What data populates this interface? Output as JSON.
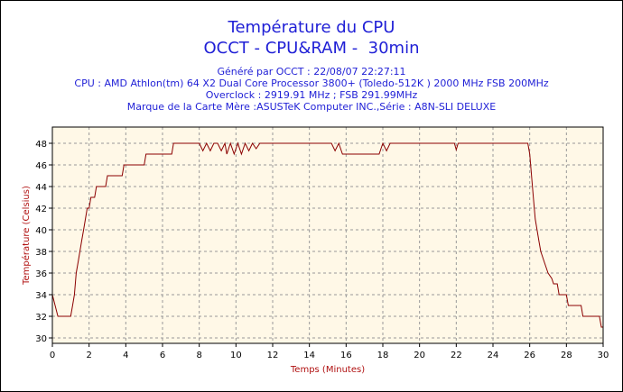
{
  "title_line1": "Température du CPU",
  "title_line2": "OCCT - CPU&RAM -  30min",
  "info_lines": [
    "Généré par OCCT : 22/08/07 22:27:11",
    "CPU : AMD Athlon(tm) 64 X2 Dual Core Processor 3800+ (Toledo-512K ) 2000 MHz FSB 200MHz",
    "Overclock : 2919.91 MHz ; FSB 291.99MHz",
    "Marque de la Carte Mère :ASUSTeK Computer INC.,Série : A8N-SLI DELUXE"
  ],
  "chart_data": {
    "type": "line",
    "title": "Température du CPU",
    "xlabel": "Temps (Minutes)",
    "ylabel": "Température (Celsius)",
    "xlim": [
      0,
      30
    ],
    "ylim": [
      29.5,
      49.5
    ],
    "x_ticks": [
      0,
      2,
      4,
      6,
      8,
      10,
      12,
      14,
      16,
      18,
      20,
      22,
      24,
      26,
      28,
      30
    ],
    "y_ticks": [
      30,
      32,
      34,
      36,
      38,
      40,
      42,
      44,
      46,
      48
    ],
    "grid": true,
    "colors": {
      "line": "#8b0000",
      "plot_bg": "#fff8e7",
      "grid": "#999999",
      "title": "#1f1fd6",
      "axis_label": "#b01010"
    },
    "series": [
      {
        "values": [
          [
            0,
            34
          ],
          [
            0.3,
            32
          ],
          [
            0.5,
            32
          ],
          [
            1.0,
            32
          ],
          [
            1.1,
            33
          ],
          [
            1.2,
            34
          ],
          [
            1.3,
            36
          ],
          [
            1.4,
            37
          ],
          [
            1.5,
            38
          ],
          [
            1.6,
            39
          ],
          [
            1.7,
            40
          ],
          [
            1.8,
            41
          ],
          [
            1.9,
            42
          ],
          [
            2.0,
            42
          ],
          [
            2.1,
            43
          ],
          [
            2.2,
            43
          ],
          [
            2.3,
            43
          ],
          [
            2.4,
            44
          ],
          [
            2.8,
            44
          ],
          [
            2.9,
            44
          ],
          [
            3.0,
            45
          ],
          [
            3.6,
            45
          ],
          [
            3.8,
            45
          ],
          [
            3.9,
            46
          ],
          [
            5.0,
            46
          ],
          [
            5.1,
            47
          ],
          [
            6.5,
            47
          ],
          [
            6.6,
            48
          ],
          [
            8.0,
            48
          ],
          [
            8.2,
            47.3
          ],
          [
            8.4,
            48
          ],
          [
            8.6,
            47.3
          ],
          [
            8.8,
            48
          ],
          [
            9.0,
            48
          ],
          [
            9.2,
            47.3
          ],
          [
            9.4,
            48
          ],
          [
            9.5,
            47
          ],
          [
            9.7,
            48
          ],
          [
            9.9,
            47
          ],
          [
            10.1,
            48
          ],
          [
            10.3,
            47
          ],
          [
            10.5,
            48
          ],
          [
            10.7,
            47.3
          ],
          [
            10.9,
            48
          ],
          [
            11.1,
            47.5
          ],
          [
            11.3,
            48
          ],
          [
            15.2,
            48
          ],
          [
            15.4,
            47.3
          ],
          [
            15.6,
            48
          ],
          [
            15.8,
            47
          ],
          [
            16.2,
            47
          ],
          [
            17.8,
            47
          ],
          [
            18.0,
            48
          ],
          [
            18.2,
            47.3
          ],
          [
            18.4,
            48
          ],
          [
            21.9,
            48
          ],
          [
            22.0,
            47.4
          ],
          [
            22.1,
            48
          ],
          [
            25.9,
            48
          ],
          [
            26.0,
            47
          ],
          [
            26.1,
            45
          ],
          [
            26.2,
            43
          ],
          [
            26.3,
            41
          ],
          [
            26.4,
            40
          ],
          [
            26.5,
            39
          ],
          [
            26.6,
            38
          ],
          [
            26.8,
            37
          ],
          [
            27.0,
            36
          ],
          [
            27.2,
            35.5
          ],
          [
            27.3,
            35
          ],
          [
            27.5,
            35
          ],
          [
            27.6,
            34
          ],
          [
            28.0,
            34
          ],
          [
            28.1,
            33
          ],
          [
            28.8,
            33
          ],
          [
            28.9,
            32
          ],
          [
            29.8,
            32
          ],
          [
            29.9,
            31
          ],
          [
            30,
            31
          ]
        ]
      }
    ]
  }
}
